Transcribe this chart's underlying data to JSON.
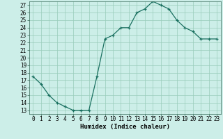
{
  "x": [
    0,
    1,
    2,
    3,
    4,
    5,
    6,
    7,
    8,
    9,
    10,
    11,
    12,
    13,
    14,
    15,
    16,
    17,
    18,
    19,
    20,
    21,
    22,
    23
  ],
  "y": [
    17.5,
    16.5,
    15.0,
    14.0,
    13.5,
    13.0,
    13.0,
    13.0,
    17.5,
    22.5,
    23.0,
    24.0,
    24.0,
    26.0,
    26.5,
    27.5,
    27.0,
    26.5,
    25.0,
    24.0,
    23.5,
    22.5,
    22.5,
    22.5
  ],
  "ylim_min": 12.5,
  "ylim_max": 27.5,
  "xlim_min": -0.5,
  "xlim_max": 23.5,
  "yticks": [
    13,
    14,
    15,
    16,
    17,
    18,
    19,
    20,
    21,
    22,
    23,
    24,
    25,
    26,
    27
  ],
  "xticks": [
    0,
    1,
    2,
    3,
    4,
    5,
    6,
    7,
    8,
    9,
    10,
    11,
    12,
    13,
    14,
    15,
    16,
    17,
    18,
    19,
    20,
    21,
    22,
    23
  ],
  "xlabel": "Humidex (Indice chaleur)",
  "line_color": "#1a7060",
  "marker": "+",
  "bg_color": "#cceee8",
  "grid_color": "#99ccbb",
  "tick_fontsize": 5.5,
  "xlabel_fontsize": 6.5,
  "linewidth": 0.9,
  "markersize": 3.5,
  "markeredgewidth": 0.9
}
